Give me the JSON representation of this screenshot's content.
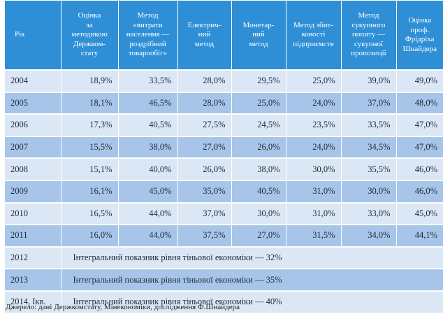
{
  "table": {
    "headers": [
      [
        "Рік"
      ],
      [
        "Оцінка",
        "за",
        "методикою",
        "Держком-",
        "стату"
      ],
      [
        "Метод",
        "«витрати",
        "населення —",
        "роздрібний",
        "товарообіг»"
      ],
      [
        "Електрич-",
        "ний",
        "метод"
      ],
      [
        "Монетар-",
        "ний",
        "метод"
      ],
      [
        "Метод збит-",
        "ковості",
        "підприємств"
      ],
      [
        "Метод",
        "сукупного",
        "попиту —",
        "сукупної",
        "пропозиції"
      ],
      [
        "Оцінка",
        "проф.",
        "Фрідріха",
        "Шнайдера"
      ]
    ],
    "rows": [
      {
        "year": "2004",
        "values": [
          "18,9%",
          "33,5%",
          "28,0%",
          "29,5%",
          "25,0%",
          "39,0%",
          "49,0%"
        ]
      },
      {
        "year": "2005",
        "values": [
          "18,1%",
          "46,5%",
          "28,0%",
          "25,0%",
          "24,0%",
          "37,0%",
          "48,0%"
        ]
      },
      {
        "year": "2006",
        "values": [
          "17,3%",
          "40,5%",
          "27,5%",
          "24,5%",
          "23,5%",
          "33,5%",
          "47,0%"
        ]
      },
      {
        "year": "2007",
        "values": [
          "15,5%",
          "38,0%",
          "27,0%",
          "26,0%",
          "24,0%",
          "34,5%",
          "47,0%"
        ]
      },
      {
        "year": "2008",
        "values": [
          "15,1%",
          "40,0%",
          "26,0%",
          "38,0%",
          "30,0%",
          "35,5%",
          "46,0%"
        ]
      },
      {
        "year": "2009",
        "values": [
          "16,1%",
          "45,0%",
          "35,0%",
          "40,5%",
          "31,0%",
          "30,0%",
          "46,0%"
        ]
      },
      {
        "year": "2010",
        "values": [
          "16,5%",
          "44,0%",
          "37,0%",
          "30,0%",
          "31,0%",
          "33,0%",
          "45,0%"
        ]
      },
      {
        "year": "2011",
        "values": [
          "16,0%",
          "44,0%",
          "37,5%",
          "27,0%",
          "31,5%",
          "34,0%",
          "44,1%"
        ]
      }
    ],
    "span_rows": [
      {
        "year": "2012",
        "text": "Інтегральний показник рівня тіньової економіки — 32%"
      },
      {
        "year": "2013",
        "text": "Інтегральний показник рівня тіньової економіки — 35%"
      },
      {
        "year": "2014, Ікв.",
        "text": "Інтегральний показник рівня тіньової економіки — 40%"
      }
    ]
  },
  "source": "Джерело: дані Держкомстату, Мінекономіки, дослідження Ф.Шнайдера",
  "colors": {
    "header": "#2f8fd6",
    "row_light": "#dbe7f4",
    "row_dark": "#a7c5e9"
  }
}
